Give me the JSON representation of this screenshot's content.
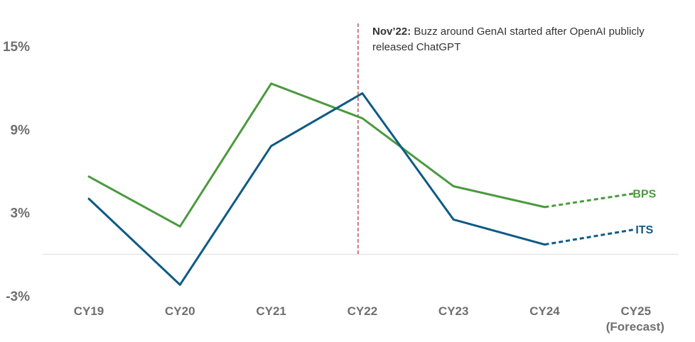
{
  "chart_data": {
    "type": "line",
    "categories": [
      "CY19",
      "CY20",
      "CY21",
      "CY22",
      "CY23",
      "CY24",
      "CY25"
    ],
    "category_sublabels": [
      "",
      "",
      "",
      "",
      "",
      "",
      "(Forecast)"
    ],
    "y_ticks": [
      {
        "value": 15,
        "label": "15%"
      },
      {
        "value": 9,
        "label": "9%"
      },
      {
        "value": 3,
        "label": "3%"
      },
      {
        "value": -3,
        "label": "-3%"
      }
    ],
    "ylim": [
      -3,
      15
    ],
    "series": [
      {
        "name": "BPS",
        "color": "#4a9a3d",
        "values": [
          5.6,
          2.0,
          12.3,
          9.8,
          4.9,
          3.4,
          4.4
        ],
        "forecast_from_index": 5
      },
      {
        "name": "ITS",
        "color": "#0e5a86",
        "values": [
          4.0,
          -2.2,
          7.8,
          11.6,
          2.5,
          0.7,
          1.8
        ],
        "forecast_from_index": 5
      }
    ],
    "annotation": {
      "category_index": 3,
      "color": "#b22234",
      "bold_text": "Nov’22:",
      "text": " Buzz around GenAI started after OpenAI publicly released ChatGPT"
    },
    "zero_line": true,
    "grid": false
  }
}
